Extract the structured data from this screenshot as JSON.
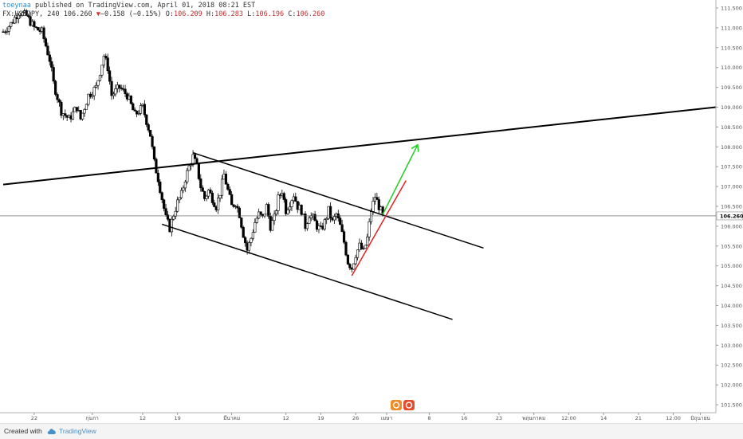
{
  "header": {
    "user": "toeynaa",
    "published": " published on TradingView.com, April 01, 2018 08:21 EST",
    "symbol_line_prefix": "FX:USDJPY, 240 106.260",
    "change_arrow": "▼",
    "change_text": "−0.158 (−0.15%)",
    "o_label": " O:",
    "o_value": "106.209",
    "h_label": " H:",
    "h_value": "106.283",
    "l_label": " L:",
    "l_value": "106.196",
    "c_label": " C:",
    "c_value": "106.260"
  },
  "footer": {
    "created_with": "Created with",
    "brand": "TradingView"
  },
  "chart_data": {
    "type": "candlestick",
    "symbol": "FX:USDJPY",
    "interval": "240",
    "last_price": 106.26,
    "last_price_label": "106.260",
    "ylim": [
      101.3,
      111.7
    ],
    "y_ticks": [
      {
        "value": 111.5,
        "label": "111.500"
      },
      {
        "value": 111.0,
        "label": "111.000"
      },
      {
        "value": 110.5,
        "label": "110.500"
      },
      {
        "value": 110.0,
        "label": "110.000"
      },
      {
        "value": 109.5,
        "label": "109.500"
      },
      {
        "value": 109.0,
        "label": "109.000"
      },
      {
        "value": 108.5,
        "label": "108.500"
      },
      {
        "value": 108.0,
        "label": "108.000"
      },
      {
        "value": 107.5,
        "label": "107.500"
      },
      {
        "value": 107.0,
        "label": "107.000"
      },
      {
        "value": 106.5,
        "label": "106.500"
      },
      {
        "value": 106.0,
        "label": "106.000"
      },
      {
        "value": 105.5,
        "label": "105.500"
      },
      {
        "value": 105.0,
        "label": "105.000"
      },
      {
        "value": 104.5,
        "label": "104.500"
      },
      {
        "value": 104.0,
        "label": "104.000"
      },
      {
        "value": 103.5,
        "label": "103.500"
      },
      {
        "value": 103.0,
        "label": "103.000"
      },
      {
        "value": 102.5,
        "label": "102.500"
      },
      {
        "value": 102.0,
        "label": "102.000"
      },
      {
        "value": 101.5,
        "label": "101.500"
      }
    ],
    "x_ticks": [
      {
        "label": "22",
        "bar": 8
      },
      {
        "label": "กุมภา",
        "bar": 23
      },
      {
        "label": "12",
        "bar": 36
      },
      {
        "label": "19",
        "bar": 45
      },
      {
        "label": "มีนาคม",
        "bar": 59
      },
      {
        "label": "12",
        "bar": 73
      },
      {
        "label": "19",
        "bar": 82
      },
      {
        "label": "26",
        "bar": 91
      },
      {
        "label": "เมษา",
        "bar": 99
      },
      {
        "label": "8",
        "bar": 110
      },
      {
        "label": "16",
        "bar": 119
      },
      {
        "label": "23",
        "bar": 128
      },
      {
        "label": "พฤษภาคม",
        "bar": 137
      },
      {
        "label": "12:00",
        "bar": 146
      },
      {
        "label": "14",
        "bar": 155
      },
      {
        "label": "21",
        "bar": 164
      },
      {
        "label": "12:00",
        "bar": 173
      },
      {
        "label": "มิถุนายน",
        "bar": 180
      }
    ],
    "close_path": [
      [
        0,
        110.9
      ],
      [
        2,
        111.1
      ],
      [
        4,
        111.4
      ],
      [
        6,
        111.3
      ],
      [
        8,
        111.0
      ],
      [
        10,
        110.9
      ],
      [
        12,
        110.2
      ],
      [
        13,
        109.6
      ],
      [
        15,
        108.9
      ],
      [
        17,
        108.7
      ],
      [
        19,
        109.0
      ],
      [
        20,
        108.7
      ],
      [
        22,
        109.3
      ],
      [
        24,
        109.5
      ],
      [
        26,
        110.3
      ],
      [
        27,
        110.0
      ],
      [
        28,
        109.3
      ],
      [
        30,
        109.5
      ],
      [
        32,
        109.3
      ],
      [
        34,
        108.8
      ],
      [
        36,
        109.0
      ],
      [
        38,
        108.3
      ],
      [
        39,
        107.6
      ],
      [
        40,
        107.2
      ],
      [
        41,
        106.7
      ],
      [
        42,
        106.2
      ],
      [
        43,
        105.95
      ],
      [
        44,
        106.3
      ],
      [
        45,
        106.6
      ],
      [
        46,
        106.8
      ],
      [
        47,
        107.2
      ],
      [
        48,
        107.5
      ],
      [
        49,
        107.75
      ],
      [
        50,
        107.5
      ],
      [
        51,
        107.0
      ],
      [
        52,
        106.7
      ],
      [
        53,
        106.9
      ],
      [
        54,
        106.7
      ],
      [
        55,
        106.5
      ],
      [
        56,
        106.85
      ],
      [
        57,
        107.3
      ],
      [
        58,
        106.9
      ],
      [
        59,
        106.5
      ],
      [
        60,
        106.6
      ],
      [
        61,
        106.3
      ],
      [
        62,
        105.8
      ],
      [
        63,
        105.4
      ],
      [
        64,
        105.7
      ],
      [
        65,
        106.1
      ],
      [
        66,
        106.3
      ],
      [
        67,
        106.2
      ],
      [
        68,
        106.5
      ],
      [
        69,
        106.0
      ],
      [
        70,
        106.2
      ],
      [
        71,
        106.7
      ],
      [
        72,
        106.9
      ],
      [
        73,
        106.4
      ],
      [
        74,
        106.6
      ],
      [
        75,
        106.8
      ],
      [
        76,
        106.5
      ],
      [
        77,
        106.4
      ],
      [
        78,
        106.0
      ],
      [
        79,
        106.3
      ],
      [
        80,
        106.2
      ],
      [
        81,
        106.0
      ],
      [
        82,
        105.9
      ],
      [
        83,
        106.1
      ],
      [
        84,
        106.4
      ],
      [
        85,
        106.1
      ],
      [
        86,
        106.3
      ],
      [
        87,
        106.0
      ],
      [
        88,
        105.6
      ],
      [
        89,
        105.1
      ],
      [
        90,
        104.95
      ],
      [
        91,
        105.3
      ],
      [
        92,
        105.5
      ],
      [
        93,
        105.35
      ],
      [
        94,
        105.7
      ],
      [
        95,
        106.4
      ],
      [
        96,
        106.75
      ],
      [
        97,
        106.5
      ],
      [
        98,
        106.26
      ]
    ],
    "bars_total": 184,
    "trendlines": [
      {
        "name": "long-resistance",
        "color": "#000000",
        "points": [
          [
            0,
            107.05
          ],
          [
            184,
            109.0
          ]
        ]
      },
      {
        "name": "channel-upper",
        "color": "#000000",
        "points": [
          [
            49,
            107.85
          ],
          [
            124,
            105.45
          ]
        ]
      },
      {
        "name": "channel-lower",
        "color": "#000000",
        "points": [
          [
            41,
            106.05
          ],
          [
            116,
            103.65
          ]
        ]
      },
      {
        "name": "rally-line",
        "color": "#e02020",
        "points": [
          [
            90,
            104.75
          ],
          [
            104,
            107.15
          ]
        ]
      },
      {
        "name": "projection-arrow",
        "color": "#22cc22",
        "points": [
          [
            98,
            106.3
          ],
          [
            107,
            108.05
          ]
        ]
      }
    ]
  }
}
